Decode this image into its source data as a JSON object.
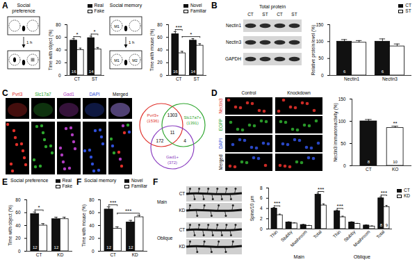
{
  "chart_data": [
    {
      "type": "bar",
      "ylabel": "Time with object (%)",
      "categories": [
        "CT",
        "ST"
      ],
      "series": [
        {
          "name": "Real",
          "color": "#111111",
          "values": [
            55,
            59
          ],
          "errors": [
            3,
            3
          ],
          "n": [
            16,
            14
          ]
        },
        {
          "name": "Fake",
          "color": "#ffffff",
          "values": [
            40,
            41
          ],
          "errors": [
            3,
            3
          ]
        }
      ],
      "ylim": [
        0,
        80
      ],
      "yticks": [
        0,
        20,
        40,
        60,
        80
      ],
      "legend": "top-right",
      "significance": [
        {
          "bars": [
            [
              "CT",
              "Real"
            ],
            [
              "CT",
              "Fake"
            ]
          ],
          "label": "*"
        },
        {
          "bars": [
            [
              "ST",
              "Real"
            ],
            [
              "ST",
              "Fake"
            ]
          ],
          "label": "*"
        }
      ]
    },
    {
      "type": "bar",
      "ylabel": "Time with mouse (%)",
      "categories": [
        "CT",
        "ST"
      ],
      "series": [
        {
          "name": "Novel",
          "color": "#111111",
          "values": [
            65,
            55
          ],
          "errors": [
            4,
            3
          ],
          "n": [
            16,
            14
          ]
        },
        {
          "name": "Familiar",
          "color": "#ffffff",
          "values": [
            35,
            47
          ],
          "errors": [
            3,
            3
          ]
        }
      ],
      "ylim": [
        0,
        80
      ],
      "yticks": [
        0,
        20,
        40,
        60,
        80
      ],
      "legend": "top-right",
      "significance": [
        {
          "bars": [
            [
              "CT",
              "Novel"
            ],
            [
              "CT",
              "Familiar"
            ]
          ],
          "label": "***"
        },
        {
          "bars": [
            [
              "CT",
              "Familiar"
            ],
            [
              "ST",
              "Familiar"
            ]
          ],
          "label": "*"
        }
      ]
    },
    {
      "type": "bar",
      "ylabel": "Relative protein level (%)",
      "categories": [
        "Nectin1",
        "Nectin3"
      ],
      "series": [
        {
          "name": "CT",
          "color": "#111111",
          "values": [
            100,
            100
          ],
          "errors": [
            6,
            8
          ],
          "n": [
            6,
            6
          ]
        },
        {
          "name": "ST",
          "color": "#ffffff",
          "values": [
            97,
            86
          ],
          "errors": [
            6,
            7
          ]
        }
      ],
      "ylim": [
        0,
        150
      ],
      "yticks": [
        0,
        50,
        100,
        150
      ],
      "legend": "top-right"
    },
    {
      "type": "bar",
      "ylabel": "Nectin3 immunoreactivity (%)",
      "categories": [
        "CT",
        "KO"
      ],
      "values": [
        100,
        85
      ],
      "errors": [
        4,
        4
      ],
      "colors": [
        "#111111",
        "#ffffff"
      ],
      "n": [
        8,
        10
      ],
      "ylim": [
        0,
        150
      ],
      "yticks": [
        0,
        50,
        100,
        150
      ],
      "significance": [
        {
          "bars": [
            [
              "KO"
            ]
          ],
          "label": "**"
        }
      ]
    },
    {
      "type": "bar",
      "title": "Social preference",
      "ylabel": "Time with object (%)",
      "categories": [
        "CT",
        "KD"
      ],
      "series": [
        {
          "name": "Real",
          "color": "#111111",
          "values": [
            58,
            50
          ],
          "errors": [
            3,
            3
          ],
          "n": [
            12,
            12
          ]
        },
        {
          "name": "Fake",
          "color": "#ffffff",
          "values": [
            40,
            50
          ],
          "errors": [
            3,
            3
          ]
        }
      ],
      "ylim": [
        0,
        80
      ],
      "yticks": [
        0,
        20,
        40,
        60,
        80
      ],
      "legend": "top-right",
      "significance": [
        {
          "bars": [
            [
              "CT",
              "Real"
            ],
            [
              "CT",
              "Fake"
            ]
          ],
          "label": "*"
        }
      ]
    },
    {
      "type": "bar",
      "title": "Social memory",
      "ylabel": "Time with mouse (%)",
      "categories": [
        "CT",
        "KD"
      ],
      "series": [
        {
          "name": "Novel",
          "color": "#111111",
          "values": [
            65,
            45
          ],
          "errors": [
            4,
            3
          ],
          "n": [
            12,
            12
          ]
        },
        {
          "name": "Familiar",
          "color": "#ffffff",
          "values": [
            35,
            53
          ],
          "errors": [
            3,
            3
          ]
        }
      ],
      "ylim": [
        0,
        80
      ],
      "yticks": [
        0,
        20,
        40,
        60,
        80
      ],
      "legend": "top-right",
      "significance": [
        {
          "bars": [
            [
              "CT",
              "Novel"
            ],
            [
              "CT",
              "Familiar"
            ]
          ],
          "label": "***"
        },
        {
          "bars": [
            [
              "CT",
              "Familiar"
            ],
            [
              "KD",
              "Familiar"
            ]
          ],
          "label": "***"
        }
      ]
    },
    {
      "type": "bar",
      "ylabel": "Spine/10 μm",
      "categories": [
        "Thin",
        "Stubby",
        "Mushroom",
        "Total",
        "Thin",
        "Stubby",
        "Mushroom",
        "Total"
      ],
      "category_groups": [
        "Main",
        "Main",
        "Main",
        "Main",
        "Oblique",
        "Oblique",
        "Oblique",
        "Oblique"
      ],
      "series": [
        {
          "name": "CT",
          "color": "#111111",
          "values": [
            4.0,
            1.3,
            0.8,
            6.7,
            3.5,
            1.3,
            0.7,
            6.0
          ],
          "errors": [
            0.2,
            0.1,
            0.1,
            0.3,
            0.2,
            0.1,
            0.1,
            0.3
          ],
          "n": [
            null,
            null,
            null,
            null,
            null,
            null,
            null,
            8
          ]
        },
        {
          "name": "KD",
          "color": "#ffffff",
          "values": [
            2.7,
            1.1,
            0.6,
            4.6,
            2.3,
            1.0,
            0.5,
            4.3
          ],
          "errors": [
            0.2,
            0.1,
            0.1,
            0.3,
            0.2,
            0.1,
            0.1,
            0.3
          ],
          "n": [
            null,
            null,
            null,
            null,
            null,
            null,
            null,
            9
          ]
        }
      ],
      "ylim": [
        0,
        8
      ],
      "yticks": [
        0,
        2,
        4,
        6,
        8
      ],
      "legend": "right",
      "significance": [
        {
          "bars": [
            [
              "Main",
              "Thin",
              "CT"
            ],
            [
              "Main",
              "Thin",
              "KD"
            ]
          ],
          "label": "***"
        },
        {
          "bars": [
            [
              "Main",
              "Total",
              "CT"
            ],
            [
              "Main",
              "Total",
              "KD"
            ]
          ],
          "label": "***"
        },
        {
          "bars": [
            [
              "Oblique",
              "Thin",
              "CT"
            ],
            [
              "Oblique",
              "Thin",
              "KD"
            ]
          ],
          "label": "***"
        },
        {
          "bars": [
            [
              "Oblique",
              "Total",
              "CT"
            ],
            [
              "Oblique",
              "Total",
              "KD"
            ]
          ],
          "label": "***"
        }
      ]
    }
  ],
  "figure": {
    "panel_letters": [
      "A",
      "B",
      "C",
      "D",
      "E",
      "F",
      "F"
    ],
    "schematics": [
      {
        "title": "Social preference",
        "interval": "1 h"
      },
      {
        "title": "Social memory",
        "interval": "1 h",
        "stages": [
          [
            "M1"
          ],
          [
            "M1",
            "M2"
          ]
        ]
      }
    ],
    "blot": {
      "title": "Total protein",
      "lanes": [
        "CT",
        "ST",
        "CT",
        "ST"
      ],
      "rows": [
        "Nectin1",
        "Nectin3",
        "GAPDH"
      ]
    },
    "in_situ": {
      "channels": [
        {
          "label": "Pvrl3",
          "color": "#e0302a"
        },
        {
          "label": "Slc17a7",
          "color": "#2ea62e"
        },
        {
          "label": "Gad1",
          "color": "#b03cc0"
        },
        {
          "label": "DAPI",
          "color": "#2f4fd8"
        },
        {
          "label": "Merged",
          "color": "#000000"
        }
      ]
    },
    "venn": {
      "sets": [
        {
          "label": "Pvrl3+",
          "count": "(1536)",
          "color": "#e0302a"
        },
        {
          "label": "Slc17a7+",
          "count": "(1391)",
          "color": "#2ea62e"
        },
        {
          "label": "Gad1+",
          "count": "(372)",
          "color": "#8a3cc0"
        }
      ],
      "regions": [
        {
          "sets": [
            "Pvrl3+",
            "Slc17a7+"
          ],
          "count": 1303
        },
        {
          "sets": [
            "Pvrl3+",
            "Slc17a7+",
            "Gad1+"
          ],
          "count": 11
        },
        {
          "sets": [
            "Pvrl3+",
            "Gad1+"
          ],
          "count": 172
        },
        {
          "sets": [
            "Slc17a7+",
            "Gad1+"
          ],
          "count": 4
        }
      ]
    },
    "knockdown_images": {
      "columns": [
        "Control",
        "Knockdown"
      ],
      "rows": [
        {
          "label": "Nectin3",
          "color": "#e0302a"
        },
        {
          "label": "EGFP",
          "color": "#2ea62e"
        },
        {
          "label": "DAPI",
          "color": "#2f4fd8"
        },
        {
          "label": "Merged",
          "color": "#000000"
        }
      ]
    },
    "dendrites": {
      "groups": [
        {
          "name": "Main",
          "rows": [
            "CT",
            "KD"
          ]
        },
        {
          "name": "Oblique",
          "rows": [
            "CT",
            "KD"
          ]
        }
      ]
    }
  }
}
